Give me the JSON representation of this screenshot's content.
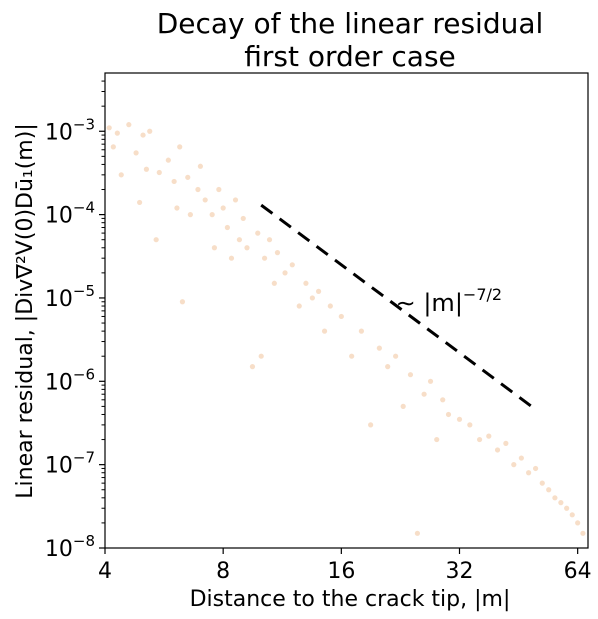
{
  "chart_data": {
    "type": "scatter",
    "title": [
      "Decay of the linear residual",
      "first order case"
    ],
    "xlabel": "Distance to the crack tip, |m|",
    "ylabel": "Linear residual, |Div∇²V(0)Dū₁(m)|",
    "x_scale": "log2",
    "y_scale": "log10",
    "xlim": [
      4,
      68
    ],
    "ylim": [
      1e-08,
      0.005
    ],
    "x_ticks": [
      {
        "value": 4,
        "label": "4"
      },
      {
        "value": 8,
        "label": "8"
      },
      {
        "value": 16,
        "label": "16"
      },
      {
        "value": 32,
        "label": "32"
      },
      {
        "value": 64,
        "label": "64"
      }
    ],
    "y_ticks": [
      {
        "value": 1e-08,
        "base": "10",
        "exp": "−8"
      },
      {
        "value": 1e-07,
        "base": "10",
        "exp": "−7"
      },
      {
        "value": 1e-06,
        "base": "10",
        "exp": "−6"
      },
      {
        "value": 1e-05,
        "base": "10",
        "exp": "−5"
      },
      {
        "value": 0.0001,
        "base": "10",
        "exp": "−4"
      },
      {
        "value": 0.001,
        "base": "10",
        "exp": "−3"
      }
    ],
    "marker_color": "#e07b22",
    "marker_opacity": 0.25,
    "series": [
      {
        "points": [
          [
            4.1,
            0.0011
          ],
          [
            4.3,
            0.00095
          ],
          [
            4.6,
            0.0012
          ],
          [
            4.2,
            0.00065
          ],
          [
            4.4,
            0.0003
          ],
          [
            4.8,
            0.00055
          ],
          [
            5.0,
            0.0009
          ],
          [
            5.2,
            0.001
          ],
          [
            5.1,
            0.00035
          ],
          [
            4.9,
            0.00014
          ],
          [
            5.4,
            5e-05
          ],
          [
            5.5,
            0.00032
          ],
          [
            5.8,
            0.00045
          ],
          [
            6.0,
            0.00025
          ],
          [
            6.1,
            0.00012
          ],
          [
            6.2,
            0.00065
          ],
          [
            6.3,
            9e-06
          ],
          [
            6.5,
            0.00028
          ],
          [
            6.6,
            0.0001
          ],
          [
            6.9,
            0.0002
          ],
          [
            7.0,
            0.00038
          ],
          [
            7.2,
            0.00015
          ],
          [
            7.5,
            0.0001
          ],
          [
            7.6,
            4e-05
          ],
          [
            7.8,
            0.0002
          ],
          [
            8.0,
            0.00012
          ],
          [
            8.2,
            7e-05
          ],
          [
            8.4,
            3e-05
          ],
          [
            8.6,
            0.00015
          ],
          [
            8.8,
            5e-05
          ],
          [
            9.0,
            9e-05
          ],
          [
            9.2,
            4e-05
          ],
          [
            9.5,
            1.5e-06
          ],
          [
            9.8,
            6e-05
          ],
          [
            10.0,
            2e-06
          ],
          [
            10.2,
            3e-05
          ],
          [
            10.5,
            5e-05
          ],
          [
            10.8,
            1.5e-05
          ],
          [
            11.0,
            3.5e-05
          ],
          [
            11.5,
            2e-05
          ],
          [
            12.0,
            2.5e-05
          ],
          [
            12.5,
            8e-06
          ],
          [
            13.0,
            1.5e-05
          ],
          [
            13.5,
            1e-05
          ],
          [
            14.0,
            1.2e-05
          ],
          [
            14.5,
            4e-06
          ],
          [
            15.0,
            8e-06
          ],
          [
            16.0,
            6e-06
          ],
          [
            17.0,
            2e-06
          ],
          [
            18.0,
            4e-06
          ],
          [
            19.0,
            3e-07
          ],
          [
            20.0,
            2.5e-06
          ],
          [
            21.0,
            1.5e-06
          ],
          [
            22.0,
            2e-06
          ],
          [
            23.0,
            5e-07
          ],
          [
            24.0,
            1.2e-06
          ],
          [
            25.0,
            1.5e-08
          ],
          [
            26.0,
            7e-07
          ],
          [
            27.0,
            1e-06
          ],
          [
            28.0,
            2e-07
          ],
          [
            29.0,
            6e-07
          ],
          [
            30.0,
            4e-07
          ],
          [
            32.0,
            3.5e-07
          ],
          [
            34.0,
            3e-07
          ],
          [
            36.0,
            2e-07
          ],
          [
            38.0,
            2.2e-07
          ],
          [
            40.0,
            1.5e-07
          ],
          [
            42.0,
            1.8e-07
          ],
          [
            44.0,
            1e-07
          ],
          [
            46.0,
            1.2e-07
          ],
          [
            48.0,
            8e-08
          ],
          [
            50.0,
            9e-08
          ],
          [
            52.0,
            6e-08
          ],
          [
            54.0,
            5e-08
          ],
          [
            56.0,
            4e-08
          ],
          [
            58.0,
            3.5e-08
          ],
          [
            60.0,
            3e-08
          ],
          [
            62.0,
            2.5e-08
          ],
          [
            64.0,
            2e-08
          ],
          [
            66.0,
            1.5e-08
          ]
        ]
      }
    ],
    "reference_line": {
      "points": [
        [
          10.0,
          0.00013
        ],
        [
          50.0,
          4.6e-07
        ]
      ],
      "style": "dashed",
      "color": "#000000"
    },
    "annotation": {
      "x": 22.0,
      "y": 7e-06,
      "prefix": "∼ |m|",
      "exp": "−7/2"
    },
    "grid": false,
    "legend": "none"
  }
}
